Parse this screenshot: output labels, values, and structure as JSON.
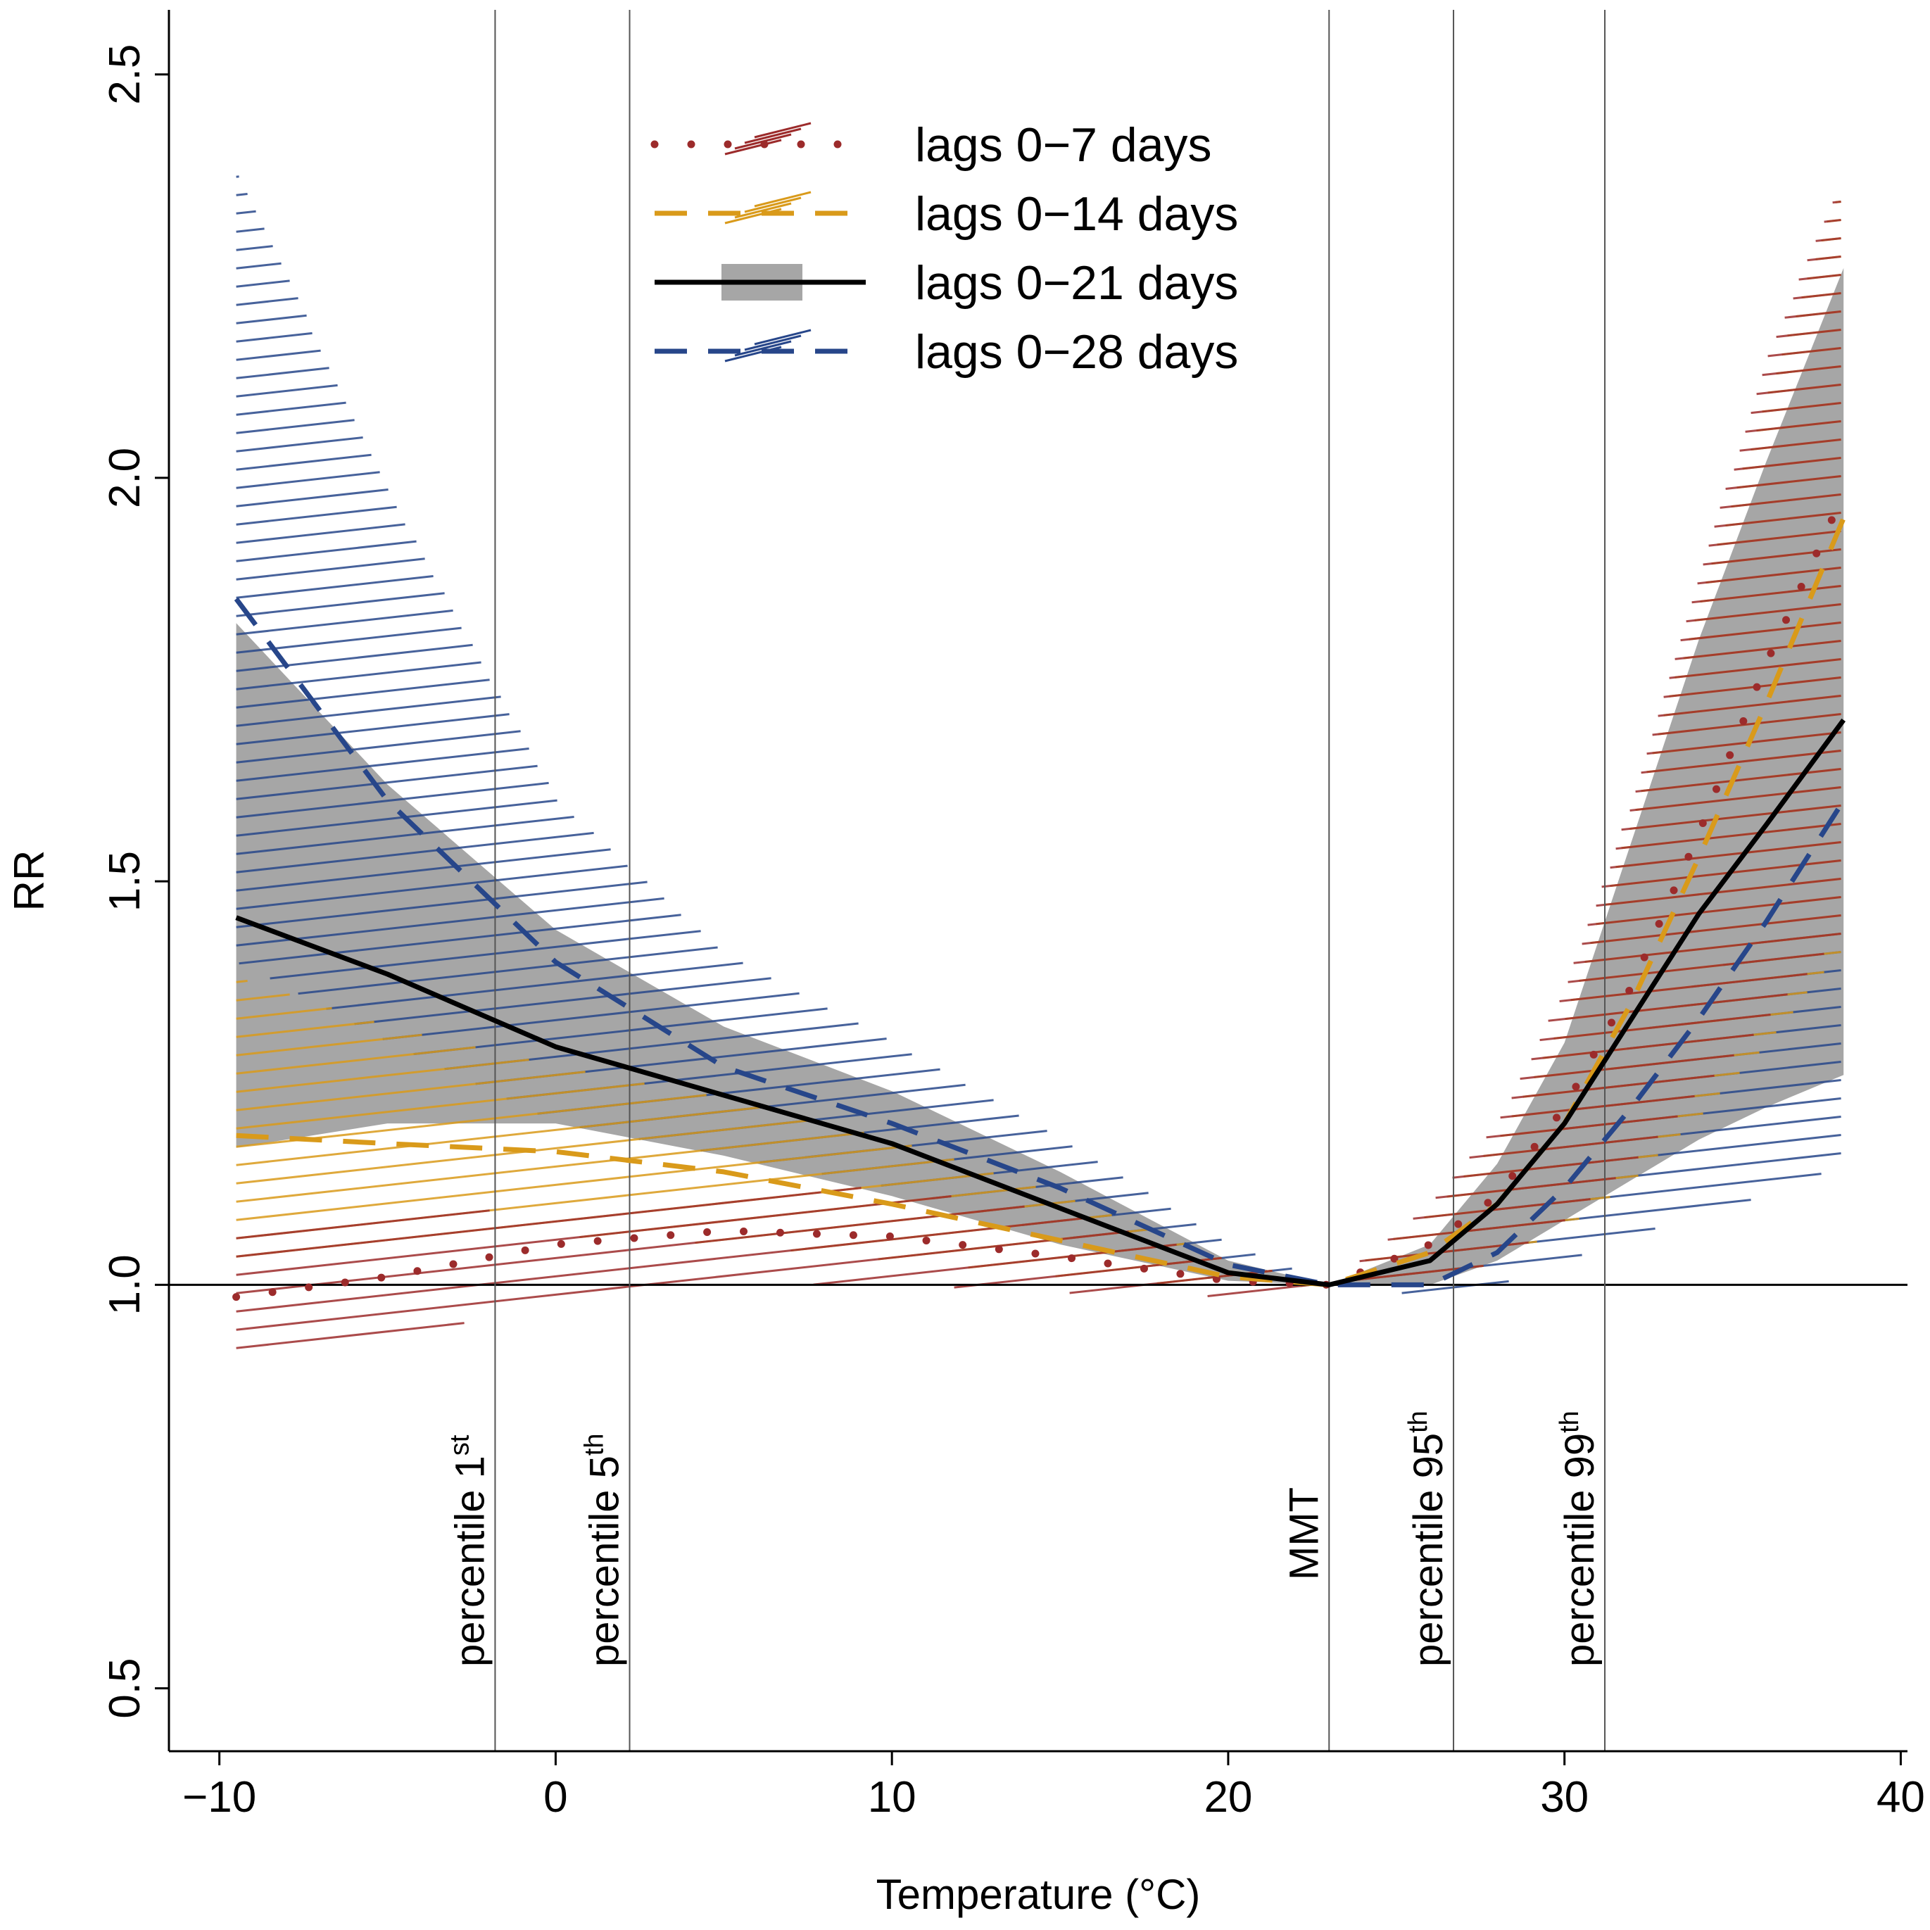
{
  "chart_data": {
    "type": "line",
    "title": "",
    "xlabel": "Temperature (°C)",
    "ylabel": "RR",
    "xlim": [
      -11.5,
      40.2
    ],
    "ylim": [
      0.422,
      2.58
    ],
    "xticks": [
      -10,
      0,
      10,
      20,
      30,
      40
    ],
    "yticks": [
      0.5,
      1.0,
      1.5,
      2.0,
      2.5
    ],
    "xtick_labels": [
      "−10",
      "0",
      "10",
      "20",
      "30",
      "40"
    ],
    "ytick_labels": [
      "0.5",
      "1.0",
      "1.5",
      "2.0",
      "2.5"
    ],
    "reference_line": 1.0,
    "vertical_lines": [
      {
        "x": -1.8,
        "label": "percentile 1",
        "sup": "st"
      },
      {
        "x": 2.2,
        "label": "percentile 5",
        "sup": "th"
      },
      {
        "x": 23.0,
        "label": "MMT",
        "sup": ""
      },
      {
        "x": 26.7,
        "label": "percentile 95",
        "sup": "th"
      },
      {
        "x": 31.2,
        "label": "percentile 99",
        "sup": "th"
      }
    ],
    "legend_position": "top-center",
    "series": [
      {
        "name": "lags 0−7 days",
        "style": "dotted",
        "color": "#9c2b2b",
        "band_style": "hatched",
        "x": [
          -9.5,
          -5,
          0,
          5,
          10,
          15,
          20,
          23,
          26,
          28,
          30,
          32,
          34,
          36,
          38.3
        ],
        "y": [
          0.985,
          1.01,
          1.05,
          1.067,
          1.06,
          1.035,
          1.005,
          1.0,
          1.05,
          1.11,
          1.22,
          1.37,
          1.56,
          1.77,
          1.98
        ],
        "lower": [
          0.9,
          0.93,
          0.98,
          1.0,
          1.0,
          0.99,
          0.985,
          1.0,
          1.0,
          1.03,
          1.08,
          1.15,
          1.24,
          1.33,
          1.44
        ],
        "upper": [
          1.08,
          1.08,
          1.1,
          1.12,
          1.12,
          1.09,
          1.03,
          1.0,
          1.1,
          1.2,
          1.37,
          1.6,
          1.88,
          2.15,
          2.38
        ]
      },
      {
        "name": "lags 0−14 days",
        "style": "dashed",
        "color": "#d99a1a",
        "band_style": "hatched",
        "x": [
          -9.5,
          -5,
          0,
          5,
          10,
          15,
          20,
          23,
          26,
          28,
          30,
          32,
          34,
          36,
          38.3
        ],
        "y": [
          1.185,
          1.175,
          1.165,
          1.14,
          1.1,
          1.055,
          1.01,
          1.0,
          1.04,
          1.1,
          1.2,
          1.35,
          1.53,
          1.72,
          1.95
        ],
        "lower": [
          1.02,
          1.05,
          1.06,
          1.05,
          1.03,
          1.01,
          0.995,
          1.0,
          1.0,
          1.03,
          1.07,
          1.13,
          1.21,
          1.3,
          1.42
        ],
        "upper": [
          1.38,
          1.32,
          1.27,
          1.23,
          1.18,
          1.11,
          1.03,
          1.0,
          1.09,
          1.18,
          1.33,
          1.58,
          1.85,
          2.1,
          2.38
        ]
      },
      {
        "name": "lags 0−21 days",
        "style": "solid",
        "color": "#000000",
        "band_style": "shaded",
        "band_color": "#a6a6a6",
        "x": [
          -9.5,
          -5,
          0,
          5,
          10,
          15,
          20,
          23,
          26,
          28,
          30,
          32,
          34,
          36,
          38.3
        ],
        "y": [
          1.455,
          1.385,
          1.295,
          1.235,
          1.175,
          1.095,
          1.015,
          1.0,
          1.03,
          1.1,
          1.2,
          1.33,
          1.46,
          1.57,
          1.7
        ],
        "lower": [
          1.17,
          1.2,
          1.2,
          1.16,
          1.11,
          1.05,
          1.005,
          1.0,
          1.0,
          1.03,
          1.08,
          1.13,
          1.18,
          1.22,
          1.26
        ],
        "upper": [
          1.82,
          1.62,
          1.44,
          1.32,
          1.24,
          1.14,
          1.03,
          1.0,
          1.05,
          1.15,
          1.3,
          1.55,
          1.8,
          2.02,
          2.26
        ]
      },
      {
        "name": "lags 0−28 days",
        "style": "dashed",
        "color": "#27468a",
        "band_style": "hatched",
        "x": [
          -9.5,
          -5,
          0,
          5,
          10,
          15,
          20,
          23,
          26,
          28,
          30,
          32,
          34,
          36,
          38.3
        ],
        "y": [
          1.85,
          1.6,
          1.4,
          1.27,
          1.2,
          1.12,
          1.025,
          1.0,
          1.0,
          1.04,
          1.12,
          1.22,
          1.33,
          1.45,
          1.6
        ],
        "lower": [
          1.4,
          1.3,
          1.2,
          1.16,
          1.12,
          1.06,
          1.0,
          1.0,
          0.985,
          1.0,
          1.03,
          1.06,
          1.09,
          1.11,
          1.15
        ],
        "upper": [
          2.38,
          1.98,
          1.6,
          1.41,
          1.3,
          1.18,
          1.05,
          1.0,
          1.03,
          1.1,
          1.2,
          1.3,
          1.38,
          1.43,
          1.45
        ]
      }
    ]
  }
}
